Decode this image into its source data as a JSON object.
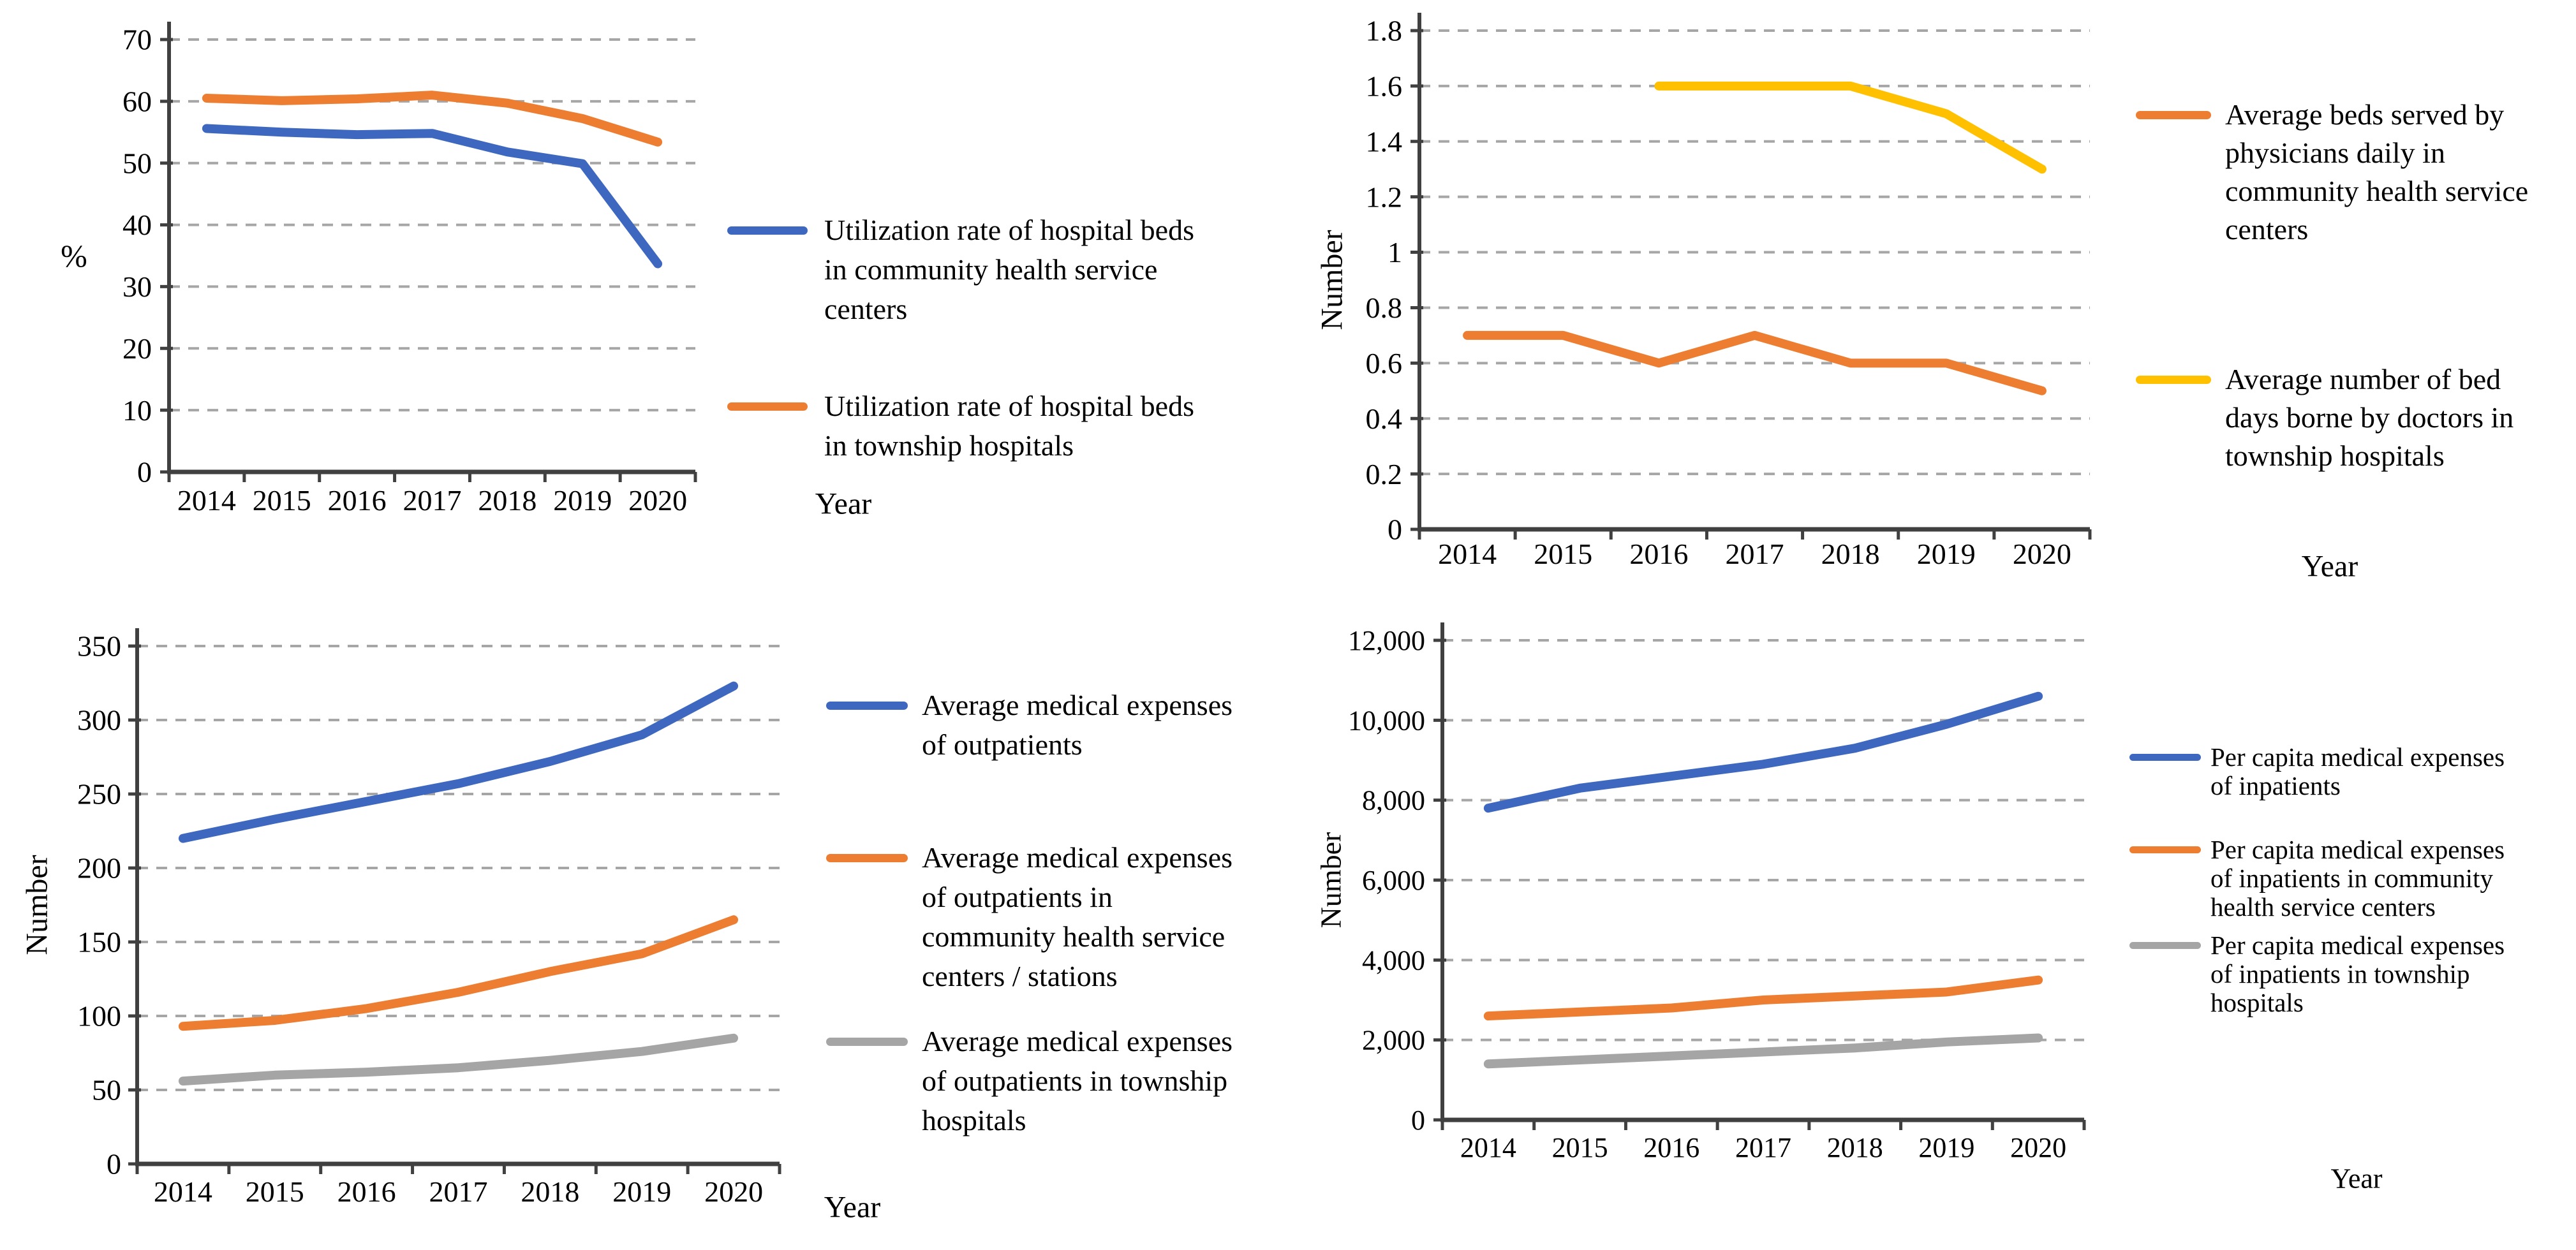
{
  "palette": {
    "blue": "#3E68C0",
    "orange": "#ED7D31",
    "yellow": "#FFC000",
    "gray": "#A5A5A5",
    "grid": "#a6a6a6",
    "axis": "#404040",
    "text": "#000000",
    "background": "#ffffff"
  },
  "chart_data": [
    {
      "id": "hospital-bed-utilization-rate",
      "type": "line",
      "position": "top-left",
      "title": "",
      "ylabel": "%",
      "xlabel": "Year",
      "grid": "horizontal-dashed",
      "legend_position": "right",
      "categories": [
        "2014",
        "2015",
        "2016",
        "2017",
        "2018",
        "2019",
        "2020"
      ],
      "ylim": [
        0,
        70
      ],
      "ytick_values": [
        0,
        10,
        20,
        30,
        40,
        50,
        60,
        70
      ],
      "ytick_labels": [
        "0",
        "10",
        "20",
        "30",
        "40",
        "50",
        "60",
        "70"
      ],
      "series": [
        {
          "name": "Utilization rate of hospital beds\nin community health service\ncenters",
          "color": "#3E68C0",
          "values": [
            55.6,
            55.0,
            54.6,
            54.8,
            51.8,
            49.9,
            33.7
          ]
        },
        {
          "name": "Utilization rate of hospital beds\nin township hospitals",
          "color": "#ED7D31",
          "values": [
            60.5,
            60.1,
            60.4,
            61.0,
            59.7,
            57.2,
            53.4
          ]
        }
      ]
    },
    {
      "id": "beds-served-daily",
      "type": "line",
      "position": "top-right",
      "title": "",
      "ylabel": "Number",
      "xlabel": "Year",
      "grid": "horizontal-dashed",
      "legend_position": "right",
      "categories": [
        "2014",
        "2015",
        "2016",
        "2017",
        "2018",
        "2019",
        "2020"
      ],
      "ylim": [
        0,
        1.8
      ],
      "ytick_values": [
        0,
        0.2,
        0.4,
        0.6,
        0.8,
        1,
        1.2,
        1.4,
        1.6,
        1.8
      ],
      "ytick_labels": [
        "0",
        "0.2",
        "0.4",
        "0.6",
        "0.8",
        "1",
        "1.2",
        "1.4",
        "1.6",
        "1.8"
      ],
      "series": [
        {
          "name": "Average beds served by\nphysicians daily in\ncommunity health service\ncenters",
          "color": "#ED7D31",
          "values": [
            0.7,
            0.7,
            0.6,
            0.7,
            0.6,
            0.6,
            0.5
          ]
        },
        {
          "name": "Average number of bed\ndays borne by doctors in\ntownship hospitals",
          "color": "#FFC000",
          "values": [
            null,
            null,
            1.6,
            1.6,
            1.6,
            1.5,
            1.3
          ]
        }
      ]
    },
    {
      "id": "outpatient-medical-expenses",
      "type": "line",
      "position": "bottom-left",
      "title": "",
      "ylabel": "Number",
      "xlabel": "Year",
      "grid": "horizontal-dashed",
      "legend_position": "right",
      "categories": [
        "2014",
        "2015",
        "2016",
        "2017",
        "2018",
        "2019",
        "2020"
      ],
      "ylim": [
        0,
        350
      ],
      "ytick_values": [
        0,
        50,
        100,
        150,
        200,
        250,
        300,
        350
      ],
      "ytick_labels": [
        "0",
        "50",
        "100",
        "150",
        "200",
        "250",
        "300",
        "350"
      ],
      "series": [
        {
          "name": "Average medical expenses\nof outpatients",
          "color": "#3E68C0",
          "values": [
            220,
            233,
            245,
            257,
            272,
            290,
            323
          ]
        },
        {
          "name": "Average medical expenses\nof outpatients in\ncommunity health service\ncenters / stations",
          "color": "#ED7D31",
          "values": [
            93,
            97,
            105,
            116,
            130,
            142,
            165
          ]
        },
        {
          "name": "Average medical expenses\nof outpatients in township\nhospitals",
          "color": "#A5A5A5",
          "values": [
            56,
            60,
            62,
            65,
            70,
            76,
            85
          ]
        }
      ]
    },
    {
      "id": "inpatient-medical-expenses",
      "type": "line",
      "position": "bottom-right",
      "title": "",
      "ylabel": "Number",
      "xlabel": "Year",
      "grid": "horizontal-dashed",
      "legend_position": "right",
      "categories": [
        "2014",
        "2015",
        "2016",
        "2017",
        "2018",
        "2019",
        "2020"
      ],
      "ylim": [
        0,
        12000
      ],
      "ytick_values": [
        0,
        2000,
        4000,
        6000,
        8000,
        10000,
        12000
      ],
      "ytick_labels": [
        "0",
        "2,000",
        "4,000",
        "6,000",
        "8,000",
        "10,000",
        "12,000"
      ],
      "series": [
        {
          "name": "Per capita medical expenses\nof inpatients",
          "color": "#3E68C0",
          "values": [
            7800,
            8300,
            8600,
            8900,
            9300,
            9900,
            10600
          ]
        },
        {
          "name": "Per capita medical expenses\nof inpatients in community\nhealth service centers",
          "color": "#ED7D31",
          "values": [
            2600,
            2700,
            2800,
            3000,
            3100,
            3200,
            3500
          ]
        },
        {
          "name": "Per capita medical expenses\nof inpatients in township\nhospitals",
          "color": "#A5A5A5",
          "values": [
            1400,
            1500,
            1600,
            1700,
            1800,
            1950,
            2050
          ]
        }
      ]
    }
  ]
}
